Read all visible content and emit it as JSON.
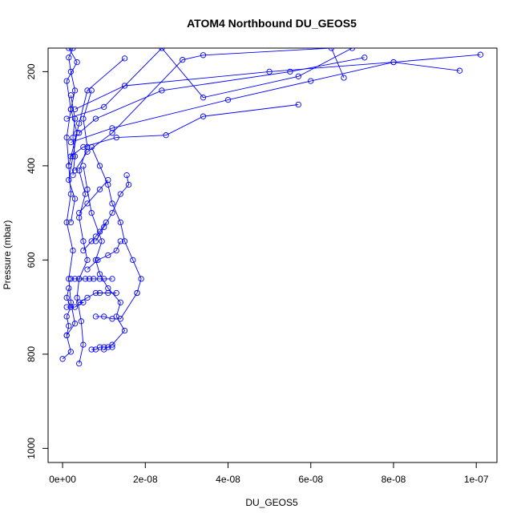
{
  "chart_data": {
    "type": "line",
    "title": "ATOM4 Northbound DU_GEOS5",
    "xlabel": "DU_GEOS5",
    "ylabel": "Pressure (mbar)",
    "xlim": [
      -3.5e-09,
      1.05e-07
    ],
    "ylim": [
      1030,
      150
    ],
    "y_reversed": true,
    "grid": false,
    "marker": "open-circle",
    "line_color": "#0000ff",
    "x_ticks": [
      {
        "value": 0,
        "label": "0e+00"
      },
      {
        "value": 2e-08,
        "label": "2e-08"
      },
      {
        "value": 4e-08,
        "label": "4e-08"
      },
      {
        "value": 6e-08,
        "label": "6e-08"
      },
      {
        "value": 8e-08,
        "label": "8e-08"
      },
      {
        "value": 1e-07,
        "label": "1e-07"
      }
    ],
    "y_ticks": [
      {
        "value": 200,
        "label": "200"
      },
      {
        "value": 400,
        "label": "400"
      },
      {
        "value": 600,
        "label": "600"
      },
      {
        "value": 800,
        "label": "800"
      },
      {
        "value": 1000,
        "label": "1000"
      }
    ],
    "series": [
      {
        "x": [
          0.0,
          2e-09,
          1e-09,
          3e-09,
          2e-09,
          1.5e-09,
          2.5e-09,
          1e-09,
          2e-09,
          1.5e-09,
          1e-09,
          2e-09,
          1e-09,
          3.5e-09,
          1.5e-09
        ],
        "y": [
          810,
          795,
          760,
          735,
          690,
          640,
          580,
          520,
          460,
          400,
          340,
          280,
          220,
          180,
          150
        ]
      },
      {
        "x": [
          4e-09,
          5e-09,
          4.5e-09,
          3.5e-09,
          4e-09,
          6e-09,
          5e-09,
          4e-09,
          5.5e-09,
          4e-09,
          6e-09,
          5e-09,
          7e-09
        ],
        "y": [
          820,
          780,
          730,
          680,
          640,
          600,
          560,
          510,
          460,
          410,
          360,
          300,
          240
        ]
      },
      {
        "x": [
          1e-08,
          1.2e-08,
          1.5e-08,
          1.3e-08,
          1.4e-08,
          1.1e-08,
          9e-09,
          8e-09,
          9.5e-09,
          7e-09,
          6e-09,
          5e-09
        ],
        "y": [
          790,
          780,
          750,
          720,
          690,
          660,
          630,
          600,
          560,
          500,
          450,
          400
        ]
      },
      {
        "x": [
          1.8e-08,
          1.9e-08,
          1.7e-08,
          1.5e-08,
          1.4e-08,
          1.2e-08,
          1.1e-08,
          9e-09,
          7e-09
        ],
        "y": [
          670,
          640,
          600,
          560,
          520,
          480,
          440,
          400,
          360
        ]
      },
      {
        "x": [
          1.55e-08,
          1.6e-08,
          1.4e-08,
          1.2e-08,
          1e-08,
          8e-09
        ],
        "y": [
          420,
          440,
          460,
          500,
          530,
          560
        ]
      },
      {
        "x": [
          2e-09,
          3e-09,
          1.5e-09,
          2.5e-09,
          3.5e-09,
          2e-09,
          3e-09,
          2e-09,
          1.5e-09,
          2.5e-09
        ],
        "y": [
          520,
          470,
          430,
          380,
          330,
          280,
          240,
          200,
          170,
          150
        ]
      },
      {
        "x": [
          1e-09,
          3e-09,
          5e-09,
          4e-09,
          6e-09,
          8e-09,
          9e-09,
          1.1e-08,
          1.3e-08
        ],
        "y": [
          700,
          700,
          690,
          690,
          680,
          670,
          670,
          670,
          670
        ]
      },
      {
        "x": [
          2e-09,
          3e-09,
          4e-09,
          5.5e-09,
          6.5e-09,
          7.5e-09,
          9e-09,
          1e-08,
          1.2e-08
        ],
        "y": [
          640,
          640,
          640,
          640,
          640,
          640,
          640,
          640,
          640
        ]
      },
      {
        "x": [
          7e-09,
          8e-09,
          9e-09,
          1e-08,
          1.1e-08,
          1.2e-08
        ],
        "y": [
          790,
          790,
          785,
          785,
          785,
          785
        ]
      },
      {
        "x": [
          2.5e-09,
          3e-09,
          2.5e-09,
          3e-09,
          2e-09
        ],
        "y": [
          420,
          380,
          340,
          300,
          250
        ]
      },
      {
        "x": [
          2e-09,
          5e-09,
          1.3e-08,
          2.5e-08,
          3.4e-08,
          5.7e-08
        ],
        "y": [
          380,
          360,
          340,
          335,
          295,
          270
        ]
      },
      {
        "x": [
          3e-09,
          6e-09,
          1.2e-08,
          2.9e-08,
          3.4e-08,
          6.5e-08,
          6.8e-08
        ],
        "y": [
          410,
          370,
          330,
          175,
          165,
          150,
          213
        ]
      },
      {
        "x": [
          4e-09,
          8e-09,
          2.4e-08,
          5.5e-08,
          7.3e-08
        ],
        "y": [
          330,
          300,
          240,
          200,
          170
        ]
      },
      {
        "x": [
          1e-09,
          1e-08,
          2.4e-08,
          3.4e-08,
          5.7e-08,
          7e-08
        ],
        "y": [
          300,
          275,
          150,
          255,
          210,
          150
        ]
      },
      {
        "x": [
          2e-09,
          1.2e-08,
          4e-08,
          6e-08,
          8e-08,
          9.6e-08
        ],
        "y": [
          350,
          320,
          260,
          220,
          180,
          198
        ]
      },
      {
        "x": [
          3e-09,
          1.5e-08,
          5e-08,
          8e-08,
          1.01e-07
        ],
        "y": [
          280,
          230,
          200,
          180,
          164
        ]
      },
      {
        "x": [
          1.5e-09,
          4e-09,
          6e-09,
          1.5e-08
        ],
        "y": [
          400,
          310,
          240,
          172
        ]
      },
      {
        "x": [
          1e-09,
          1.5e-09,
          1e-09,
          2e-09,
          1e-09,
          1.5e-09
        ],
        "y": [
          760,
          740,
          720,
          700,
          680,
          660
        ]
      },
      {
        "x": [
          5e-09,
          7e-09,
          8e-09,
          9e-09,
          1.05e-08
        ],
        "y": [
          580,
          560,
          550,
          540,
          520
        ]
      },
      {
        "x": [
          6e-09,
          8.5e-09,
          1.1e-08,
          1.3e-08,
          1.4e-08
        ],
        "y": [
          620,
          600,
          590,
          580,
          560
        ]
      },
      {
        "x": [
          8e-09,
          1e-08,
          1.2e-08,
          1.4e-08,
          1.8e-08
        ],
        "y": [
          720,
          720,
          725,
          725,
          670
        ]
      },
      {
        "x": [
          4e-09,
          6e-09,
          9e-09,
          1.1e-08
        ],
        "y": [
          500,
          480,
          450,
          430
        ]
      }
    ]
  }
}
